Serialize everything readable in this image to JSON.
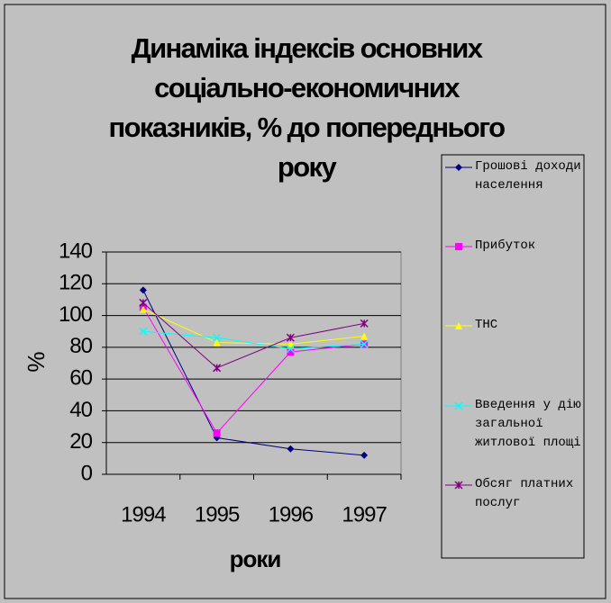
{
  "chart_data": {
    "type": "line",
    "title": "Динаміка індексів основних соціально-економичних показників, % до попереднього року",
    "x_label": "роки",
    "y_label": "%",
    "categories": [
      "1994",
      "1995",
      "1996",
      "1997"
    ],
    "ylim": [
      0,
      140
    ],
    "yticks": [
      0,
      20,
      40,
      60,
      80,
      100,
      120,
      140
    ],
    "grid": true,
    "series": [
      {
        "name": "Грошові доходи населення",
        "color": "#000080",
        "marker": "diamond",
        "values": [
          116,
          23,
          16,
          12
        ]
      },
      {
        "name": "Прибуток",
        "color": "#ff00ff",
        "marker": "square",
        "values": [
          105,
          26,
          77,
          82
        ]
      },
      {
        "name": "ТНС",
        "color": "#ffff00",
        "marker": "triangle",
        "values": [
          104,
          83,
          82,
          87
        ]
      },
      {
        "name": "Введення у дію загальної житлової площі",
        "color": "#00ffff",
        "marker": "x",
        "values": [
          90,
          86,
          79,
          82
        ]
      },
      {
        "name": "Обсяг платних послуг",
        "color": "#800080",
        "marker": "star",
        "values": [
          108,
          67,
          86,
          95
        ]
      }
    ]
  }
}
